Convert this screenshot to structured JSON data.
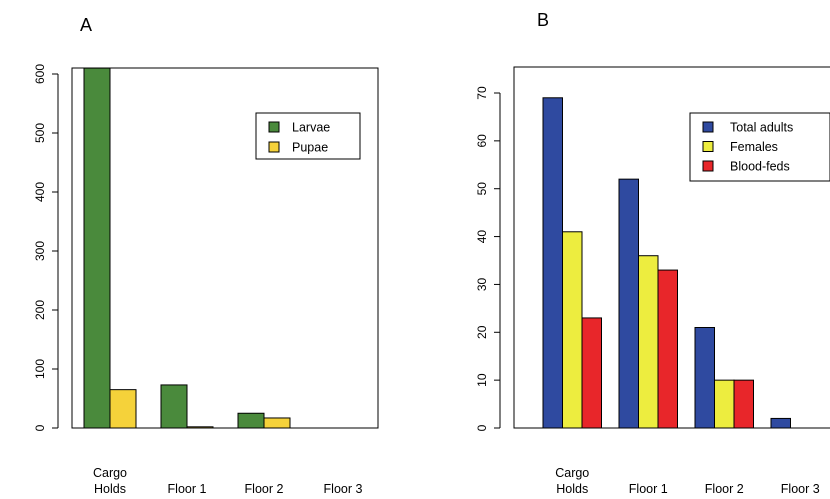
{
  "chart_data": [
    {
      "type": "bar",
      "panel_label": "A",
      "title": "",
      "xlabel": "",
      "ylabel": "",
      "categories": [
        [
          "Cargo",
          "Holds"
        ],
        [
          "Floor 1"
        ],
        [
          "Floor 2"
        ],
        [
          "Floor 3"
        ]
      ],
      "series": [
        {
          "name": "Larvae",
          "color": "#4a8a3c",
          "values": [
            610,
            73,
            25,
            0
          ]
        },
        {
          "name": "Pupae",
          "color": "#f5d23a",
          "values": [
            65,
            2,
            17,
            0
          ]
        }
      ],
      "yticks": [
        0,
        100,
        200,
        300,
        400,
        500,
        600
      ],
      "ylim": [
        0,
        630
      ],
      "legend_position": "top-right",
      "grid": false
    },
    {
      "type": "bar",
      "panel_label": "B",
      "title": "",
      "xlabel": "",
      "ylabel": "",
      "categories": [
        [
          "Cargo",
          "Holds"
        ],
        [
          "Floor 1"
        ],
        [
          "Floor 2"
        ],
        [
          "Floor 3"
        ]
      ],
      "series": [
        {
          "name": "Total adults",
          "color": "#2f4aa0",
          "values": [
            69,
            52,
            21,
            2
          ]
        },
        {
          "name": "Females",
          "color": "#eded3f",
          "values": [
            41,
            36,
            10,
            0
          ]
        },
        {
          "name": "Blood-feds",
          "color": "#e8262a",
          "values": [
            23,
            33,
            10,
            0
          ]
        }
      ],
      "yticks": [
        0,
        10,
        20,
        30,
        40,
        50,
        60,
        70
      ],
      "ylim": [
        0,
        72.5
      ],
      "legend_position": "top-right",
      "grid": false
    }
  ]
}
